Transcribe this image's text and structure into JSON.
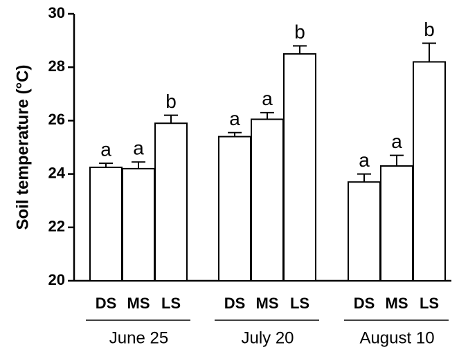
{
  "chart_data": {
    "type": "bar",
    "y_label": "Soil temperature (°C)",
    "ylim": [
      20,
      30
    ],
    "yticks": [
      20,
      22,
      24,
      26,
      28,
      30
    ],
    "color": "#ffffff",
    "groups": [
      {
        "label": "June 25",
        "categories": [
          "DS",
          "MS",
          "LS"
        ],
        "values": [
          24.25,
          24.2,
          25.9
        ],
        "errors": [
          0.15,
          0.25,
          0.3
        ],
        "annotations": [
          "a",
          "a",
          "b"
        ]
      },
      {
        "label": "July 20",
        "categories": [
          "DS",
          "MS",
          "LS"
        ],
        "values": [
          25.4,
          26.05,
          28.5
        ],
        "errors": [
          0.15,
          0.25,
          0.3
        ],
        "annotations": [
          "a",
          "a",
          "b"
        ]
      },
      {
        "label": "August 10",
        "categories": [
          "DS",
          "MS",
          "LS"
        ],
        "values": [
          23.7,
          24.3,
          28.2
        ],
        "errors": [
          0.3,
          0.4,
          0.7
        ],
        "annotations": [
          "a",
          "a",
          "b"
        ]
      }
    ]
  }
}
